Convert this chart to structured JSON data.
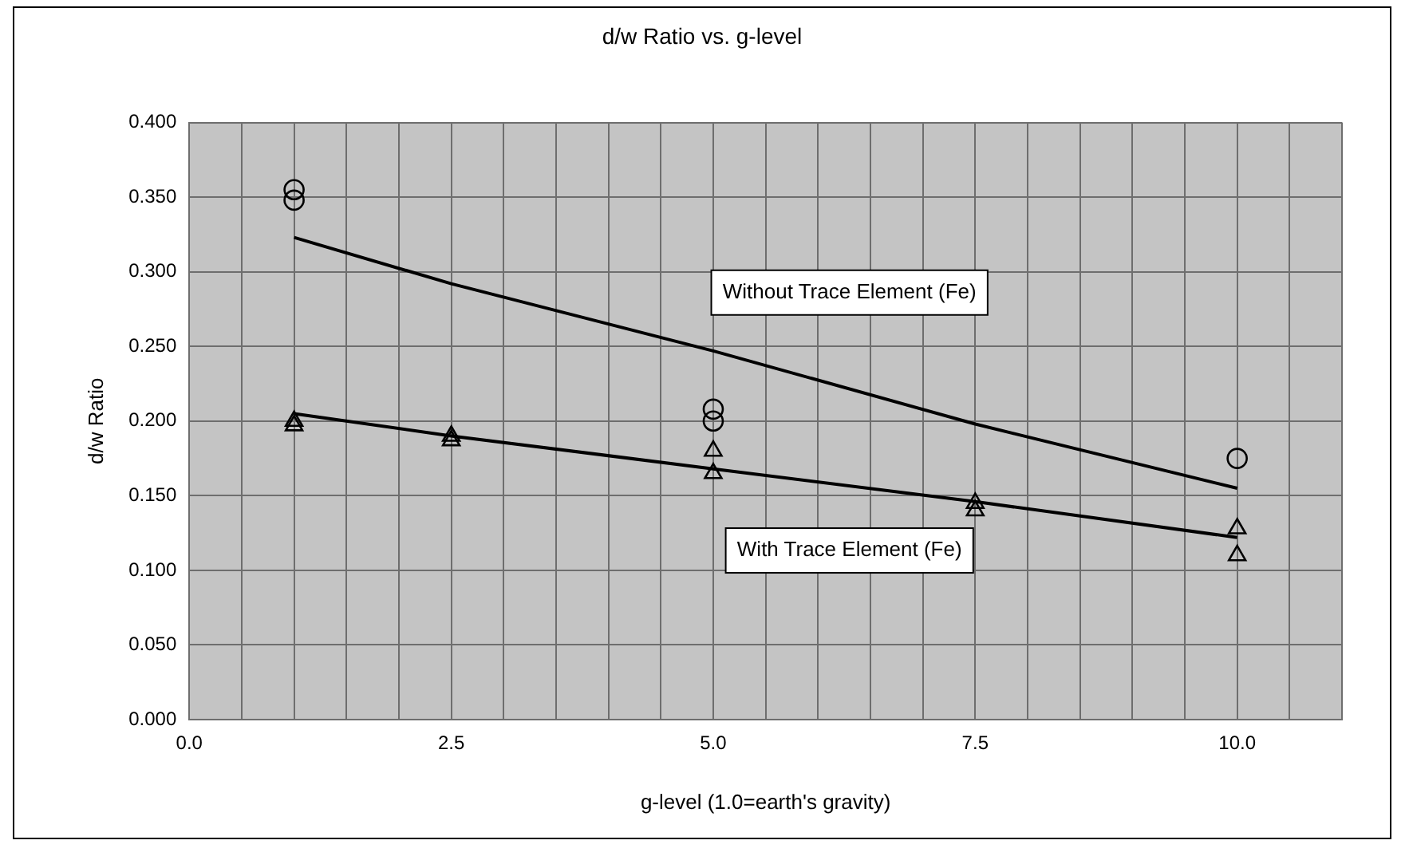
{
  "chart_data": {
    "type": "scatter",
    "title": "d/w Ratio vs. g-level",
    "xlabel": "g-level (1.0=earth's gravity)",
    "ylabel": "d/w Ratio",
    "series": [
      {
        "marker": "circle",
        "color": "#000000",
        "x": [
          1,
          1,
          5,
          5,
          10
        ],
        "values": [
          0.355,
          0.348,
          0.208,
          0.2,
          0.175
        ]
      },
      {
        "marker": "triangle",
        "color": "#000000",
        "x": [
          1,
          1,
          2.5,
          2.5,
          5,
          5,
          7.5,
          7.5,
          10,
          10
        ],
        "values": [
          0.2,
          0.197,
          0.19,
          0.187,
          0.18,
          0.165,
          0.145,
          0.14,
          0.128,
          0.11
        ]
      },
      {
        "type": "line",
        "name": "Without Trace Element (Fe)",
        "marker": "none",
        "color": "#000000",
        "x": [
          1,
          2.5,
          5,
          7.5,
          10
        ],
        "values": [
          0.323,
          0.292,
          0.247,
          0.198,
          0.155
        ]
      },
      {
        "type": "line",
        "name": "With Trace Element (Fe)",
        "marker": "none",
        "color": "#000000",
        "x": [
          1,
          2.5,
          5,
          7.5,
          10
        ],
        "values": [
          0.205,
          0.19,
          0.168,
          0.146,
          0.122
        ]
      }
    ],
    "xlim": [
      0,
      11
    ],
    "xticks": [
      {
        "value": 0,
        "label": "0.0"
      },
      {
        "value": 0.5,
        "label": null
      },
      {
        "value": 1,
        "label": null
      },
      {
        "value": 1.5,
        "label": null
      },
      {
        "value": 2,
        "label": null
      },
      {
        "value": 2.5,
        "label": "2.5"
      },
      {
        "value": 3,
        "label": null
      },
      {
        "value": 3.5,
        "label": null
      },
      {
        "value": 4,
        "label": null
      },
      {
        "value": 4.5,
        "label": null
      },
      {
        "value": 5,
        "label": "5.0"
      },
      {
        "value": 5.5,
        "label": null
      },
      {
        "value": 6,
        "label": null
      },
      {
        "value": 6.5,
        "label": null
      },
      {
        "value": 7,
        "label": null
      },
      {
        "value": 7.5,
        "label": "7.5"
      },
      {
        "value": 8,
        "label": null
      },
      {
        "value": 8.5,
        "label": null
      },
      {
        "value": 9,
        "label": null
      },
      {
        "value": 9.5,
        "label": null
      },
      {
        "value": 10,
        "label": "10.0"
      },
      {
        "value": 10.5,
        "label": null
      },
      {
        "value": 11,
        "label": null
      }
    ],
    "ylim": [
      0,
      0.4
    ],
    "yticks": [
      {
        "value": 0,
        "label": "0.000"
      },
      {
        "value": 0.05,
        "label": "0.050"
      },
      {
        "value": 0.1,
        "label": "0.100"
      },
      {
        "value": 0.15,
        "label": "0.150"
      },
      {
        "value": 0.2,
        "label": "0.200"
      },
      {
        "value": 0.25,
        "label": "0.250"
      },
      {
        "value": 0.3,
        "label": "0.300"
      },
      {
        "value": 0.35,
        "label": "0.350"
      },
      {
        "value": 0.4,
        "label": "0.400"
      }
    ],
    "grid": true,
    "legend": false
  }
}
